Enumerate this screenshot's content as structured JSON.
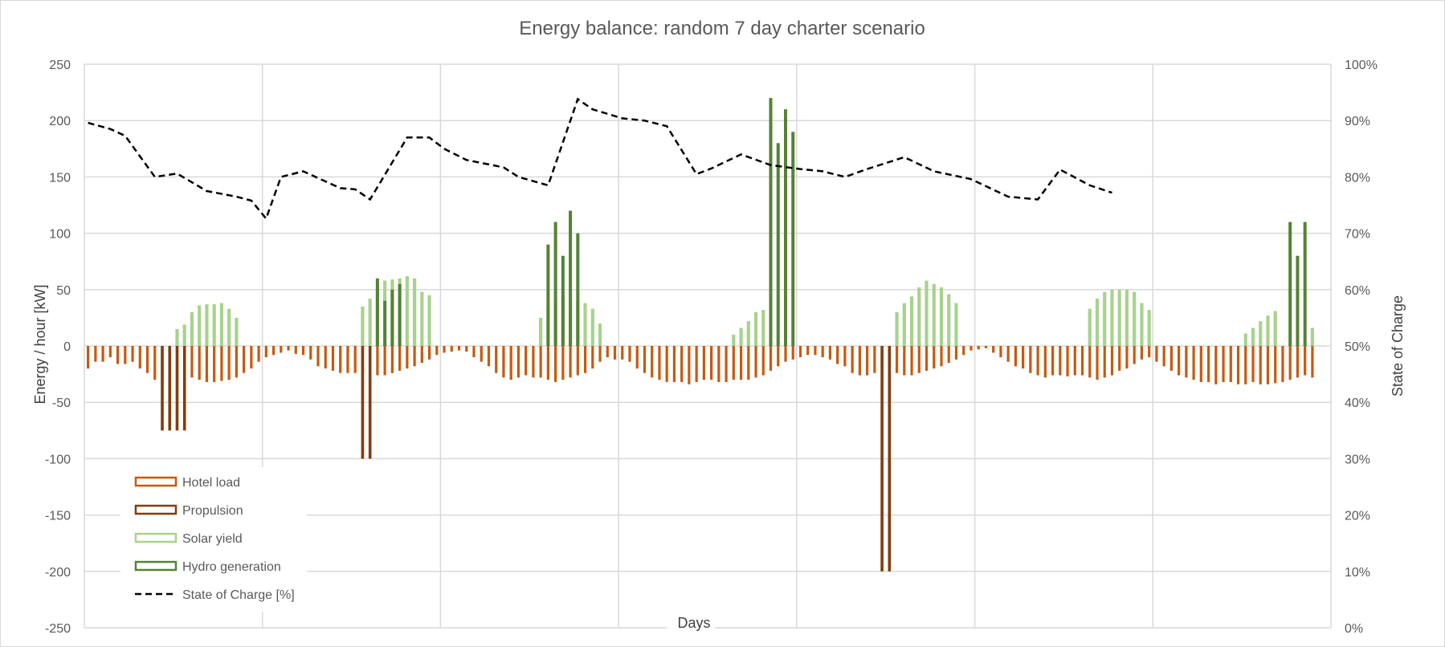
{
  "chart_data": {
    "type": "bar",
    "title": "Energy balance: random 7 day charter scenario",
    "xlabel": "Days",
    "ylabel": "Energy / hour  [kW]",
    "y2label": "State of Charge",
    "ylim": [
      -250,
      250
    ],
    "y2lim": [
      0,
      100
    ],
    "yticks": [
      "250",
      "200",
      "150",
      "100",
      "50",
      "0",
      "-50",
      "-100",
      "-150",
      "-200",
      "-250"
    ],
    "y2ticks": [
      "100%",
      "90%",
      "80%",
      "70%",
      "60%",
      "50%",
      "40%",
      "30%",
      "20%",
      "10%",
      "0%"
    ],
    "days": 7,
    "hours_per_day": 24,
    "grid": true,
    "legend_position": "bottom-left",
    "colors": {
      "hotel": "#c55a11",
      "propulsion": "#843c0c",
      "solar": "#a9d18e",
      "hydro": "#548235",
      "soc": "#000000",
      "grid": "#d9d9d9"
    },
    "series": [
      {
        "name": "Hotel load",
        "type": "bar",
        "values": [
          -20,
          -14,
          -14,
          -10,
          -16,
          -16,
          -14,
          -20,
          -24,
          -30,
          -32,
          -30,
          -28,
          -28,
          -28,
          -30,
          -32,
          -32,
          -31,
          -30,
          -28,
          -24,
          -20,
          -14,
          -10,
          -8,
          -6,
          -4,
          -7,
          -8,
          -12,
          -18,
          -20,
          -22,
          -24,
          -24,
          -24,
          -24,
          -24,
          -26,
          -26,
          -24,
          -22,
          -20,
          -18,
          -15,
          -12,
          -8,
          -6,
          -5,
          -4,
          -5,
          -10,
          -14,
          -18,
          -24,
          -28,
          -30,
          -28,
          -26,
          -28,
          -28,
          -30,
          -32,
          -30,
          -28,
          -26,
          -24,
          -20,
          -14,
          -10,
          -12,
          -12,
          -14,
          -20,
          -24,
          -28,
          -30,
          -32,
          -32,
          -32,
          -34,
          -32,
          -30,
          -30,
          -32,
          -32,
          -30,
          -30,
          -30,
          -28,
          -26,
          -22,
          -18,
          -14,
          -12,
          -10,
          -8,
          -8,
          -10,
          -12,
          -16,
          -18,
          -24,
          -26,
          -26,
          -24,
          -24,
          -22,
          -24,
          -26,
          -26,
          -24,
          -22,
          -20,
          -18,
          -15,
          -12,
          -8,
          -4,
          -3,
          -2,
          -6,
          -10,
          -14,
          -18,
          -20,
          -24,
          -26,
          -28,
          -26,
          -26,
          -27,
          -26,
          -26,
          -28,
          -30,
          -28,
          -26,
          -22,
          -20,
          -16,
          -12,
          -10,
          -14,
          -18,
          -22,
          -26,
          -28,
          -30,
          -32,
          -32,
          -34,
          -32,
          -32,
          -34,
          -34,
          -32,
          -34,
          -34,
          -33,
          -32,
          -30,
          -28,
          -26,
          -28
        ]
      },
      {
        "name": "Propulsion",
        "type": "bar",
        "values": [
          0,
          0,
          0,
          0,
          0,
          0,
          0,
          0,
          0,
          0,
          -75,
          -75,
          -75,
          -75,
          0,
          0,
          0,
          0,
          0,
          0,
          0,
          0,
          0,
          0,
          0,
          0,
          0,
          0,
          0,
          0,
          0,
          0,
          0,
          0,
          0,
          0,
          0,
          -100,
          -100,
          0,
          0,
          0,
          0,
          0,
          0,
          0,
          0,
          0,
          0,
          0,
          0,
          0,
          0,
          0,
          0,
          0,
          0,
          0,
          0,
          0,
          0,
          0,
          0,
          0,
          0,
          0,
          0,
          0,
          0,
          0,
          0,
          0,
          0,
          0,
          0,
          0,
          0,
          0,
          0,
          0,
          0,
          0,
          0,
          0,
          0,
          0,
          0,
          0,
          0,
          0,
          0,
          0,
          0,
          0,
          0,
          0,
          0,
          0,
          0,
          0,
          0,
          0,
          0,
          0,
          0,
          0,
          0,
          -200,
          -200,
          0,
          0,
          0,
          0,
          0,
          0,
          0,
          0,
          0,
          0,
          0,
          0,
          0,
          0,
          0,
          0,
          0,
          0,
          0,
          0,
          0,
          0,
          0,
          0,
          0,
          0,
          0,
          0,
          0,
          0,
          0,
          0,
          0,
          0,
          0,
          0,
          0,
          0,
          0,
          0,
          0,
          0,
          0,
          0,
          0,
          0,
          0,
          0,
          0,
          0,
          0,
          0,
          0,
          0,
          0,
          0,
          0,
          0,
          0
        ]
      },
      {
        "name": "Solar yield",
        "type": "bar",
        "values": [
          0,
          0,
          0,
          0,
          0,
          0,
          0,
          0,
          0,
          0,
          0,
          0,
          15,
          19,
          30,
          36,
          37,
          37,
          38,
          33,
          25,
          0,
          0,
          0,
          0,
          0,
          0,
          0,
          0,
          0,
          0,
          0,
          0,
          0,
          0,
          0,
          0,
          35,
          42,
          52,
          58,
          59,
          60,
          62,
          60,
          48,
          45,
          0,
          0,
          0,
          0,
          0,
          0,
          0,
          0,
          0,
          0,
          0,
          0,
          0,
          0,
          25,
          36,
          40,
          44,
          42,
          40,
          38,
          33,
          20,
          0,
          0,
          0,
          0,
          0,
          0,
          0,
          0,
          0,
          0,
          0,
          0,
          0,
          0,
          0,
          0,
          0,
          10,
          16,
          22,
          30,
          32,
          0,
          0,
          0,
          0,
          0,
          0,
          0,
          0,
          0,
          0,
          0,
          0,
          0,
          0,
          0,
          0,
          0,
          30,
          38,
          44,
          52,
          58,
          55,
          52,
          46,
          38,
          0,
          0,
          0,
          0,
          0,
          0,
          0,
          0,
          0,
          0,
          0,
          0,
          0,
          0,
          0,
          0,
          0,
          33,
          42,
          48,
          50,
          50,
          50,
          48,
          38,
          32,
          0,
          0,
          0,
          0,
          0,
          0,
          0,
          0,
          0,
          0,
          0,
          0,
          11,
          16,
          22,
          27,
          31,
          0,
          0,
          0,
          0,
          16,
          0,
          0
        ]
      },
      {
        "name": "Hydro generation",
        "type": "bar",
        "values": [
          0,
          0,
          0,
          0,
          0,
          0,
          0,
          0,
          0,
          0,
          0,
          0,
          0,
          0,
          0,
          0,
          0,
          0,
          0,
          0,
          0,
          0,
          0,
          0,
          0,
          0,
          0,
          0,
          0,
          0,
          0,
          0,
          0,
          0,
          0,
          0,
          0,
          0,
          0,
          60,
          40,
          50,
          55,
          0,
          0,
          0,
          0,
          0,
          0,
          0,
          0,
          0,
          0,
          0,
          0,
          0,
          0,
          0,
          0,
          0,
          0,
          0,
          90,
          110,
          80,
          120,
          100,
          0,
          0,
          0,
          0,
          0,
          0,
          0,
          0,
          0,
          0,
          0,
          0,
          0,
          0,
          0,
          0,
          0,
          0,
          0,
          0,
          0,
          0,
          0,
          0,
          0,
          220,
          180,
          210,
          190,
          0,
          0,
          0,
          0,
          0,
          0,
          0,
          0,
          0,
          0,
          0,
          0,
          0,
          0,
          0,
          0,
          0,
          0,
          0,
          0,
          0,
          0,
          0,
          0,
          0,
          0,
          0,
          0,
          0,
          0,
          0,
          0,
          0,
          0,
          0,
          0,
          0,
          0,
          0,
          0,
          0,
          0,
          0,
          0,
          0,
          0,
          0,
          0,
          0,
          0,
          0,
          0,
          0,
          0,
          0,
          0,
          0,
          0,
          0,
          0,
          0,
          0,
          0,
          0,
          0,
          0,
          110,
          80,
          110,
          0,
          0,
          0
        ]
      },
      {
        "name": "State of Charge [%]",
        "type": "line",
        "axis": "right",
        "points": [
          [
            0,
            89.6
          ],
          [
            3,
            88.5
          ],
          [
            5,
            87.3
          ],
          [
            9,
            80
          ],
          [
            12,
            80.6
          ],
          [
            16,
            77.5
          ],
          [
            20,
            76.5
          ],
          [
            22,
            75.8
          ],
          [
            24,
            72.6
          ],
          [
            26,
            80
          ],
          [
            29,
            81
          ],
          [
            34,
            78
          ],
          [
            36,
            77.8
          ],
          [
            38,
            76
          ],
          [
            43,
            87
          ],
          [
            46,
            87
          ],
          [
            48,
            85
          ],
          [
            51,
            83
          ],
          [
            56,
            81.7
          ],
          [
            58,
            80
          ],
          [
            62,
            78.5
          ],
          [
            66,
            93.8
          ],
          [
            68,
            92
          ],
          [
            72,
            90.4
          ],
          [
            75,
            90
          ],
          [
            78,
            89
          ],
          [
            82,
            80.5
          ],
          [
            84,
            81.5
          ],
          [
            88,
            84
          ],
          [
            92,
            82.1
          ],
          [
            96,
            81.4
          ],
          [
            99,
            81
          ],
          [
            102,
            80
          ],
          [
            105,
            81.4
          ],
          [
            110,
            83.5
          ],
          [
            114,
            81
          ],
          [
            119,
            79.6
          ],
          [
            124,
            76.5
          ],
          [
            128,
            76
          ],
          [
            131,
            81.3
          ],
          [
            135,
            78.5
          ],
          [
            138,
            77.2
          ]
        ]
      }
    ]
  }
}
